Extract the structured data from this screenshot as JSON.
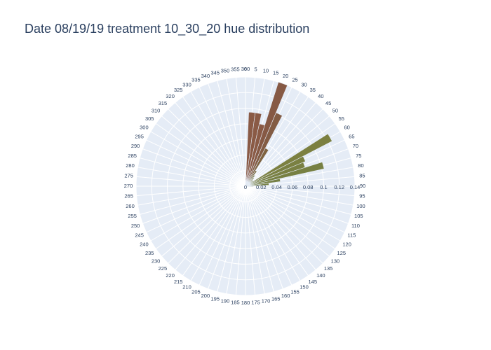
{
  "chart_data": {
    "type": "barpolar",
    "title": "Date 08/19/19 treatment 10_30_20 hue distribution",
    "angular_axis": {
      "unit": "degrees",
      "direction": "clockwise",
      "rotation": 90,
      "tick_step": 5,
      "ticks": [
        "0",
        "5",
        "10",
        "15",
        "20",
        "25",
        "30",
        "35",
        "40",
        "45",
        "50",
        "55",
        "60",
        "65",
        "70",
        "75",
        "80",
        "85",
        "90",
        "95",
        "100",
        "105",
        "110",
        "115",
        "120",
        "125",
        "130",
        "135",
        "140",
        "145",
        "150",
        "155",
        "160",
        "165",
        "170",
        "175",
        "180",
        "185",
        "190",
        "195",
        "200",
        "205",
        "210",
        "215",
        "220",
        "225",
        "230",
        "235",
        "240",
        "245",
        "250",
        "255",
        "260",
        "265",
        "270",
        "275",
        "280",
        "285",
        "290",
        "295",
        "300",
        "305",
        "310",
        "315",
        "320",
        "325",
        "330",
        "335",
        "340",
        "345",
        "350",
        "355",
        "360"
      ]
    },
    "radial_axis": {
      "range": [
        0,
        0.14
      ],
      "ticks": [
        "0",
        "0.02",
        "0.04",
        "0.06",
        "0.08",
        "0.1",
        "0.12",
        "0.14"
      ]
    },
    "grid": true,
    "bars": [
      {
        "theta": 5,
        "r": 0.095,
        "color": "#8a5a45"
      },
      {
        "theta": 10,
        "r": 0.095,
        "color": "#8a5a45"
      },
      {
        "theta": 15,
        "r": 0.082,
        "color": "#8a5a45"
      },
      {
        "theta": 20,
        "r": 0.14,
        "color": "#865944"
      },
      {
        "theta": 25,
        "r": 0.102,
        "color": "#835c44"
      },
      {
        "theta": 30,
        "r": 0.055,
        "color": "#7f6340"
      },
      {
        "theta": 35,
        "r": 0.024,
        "color": "#7a6a3e"
      },
      {
        "theta": 40,
        "r": 0.018,
        "color": "#757440"
      },
      {
        "theta": 45,
        "r": 0.015,
        "color": "#7a7840"
      },
      {
        "theta": 50,
        "r": 0.012,
        "color": "#7d7d42"
      },
      {
        "theta": 55,
        "r": 0.012,
        "color": "#7c8044"
      },
      {
        "theta": 60,
        "r": 0.125,
        "color": "#7c8040"
      },
      {
        "theta": 65,
        "r": 0.083,
        "color": "#7a8042"
      },
      {
        "theta": 70,
        "r": 0.08,
        "color": "#798043"
      },
      {
        "theta": 75,
        "r": 0.103,
        "color": "#778043"
      },
      {
        "theta": 80,
        "r": 0.045,
        "color": "#768044"
      },
      {
        "theta": 85,
        "r": 0.03,
        "color": "#758044"
      },
      {
        "theta": 90,
        "r": 0.01,
        "color": "#748044"
      }
    ]
  }
}
